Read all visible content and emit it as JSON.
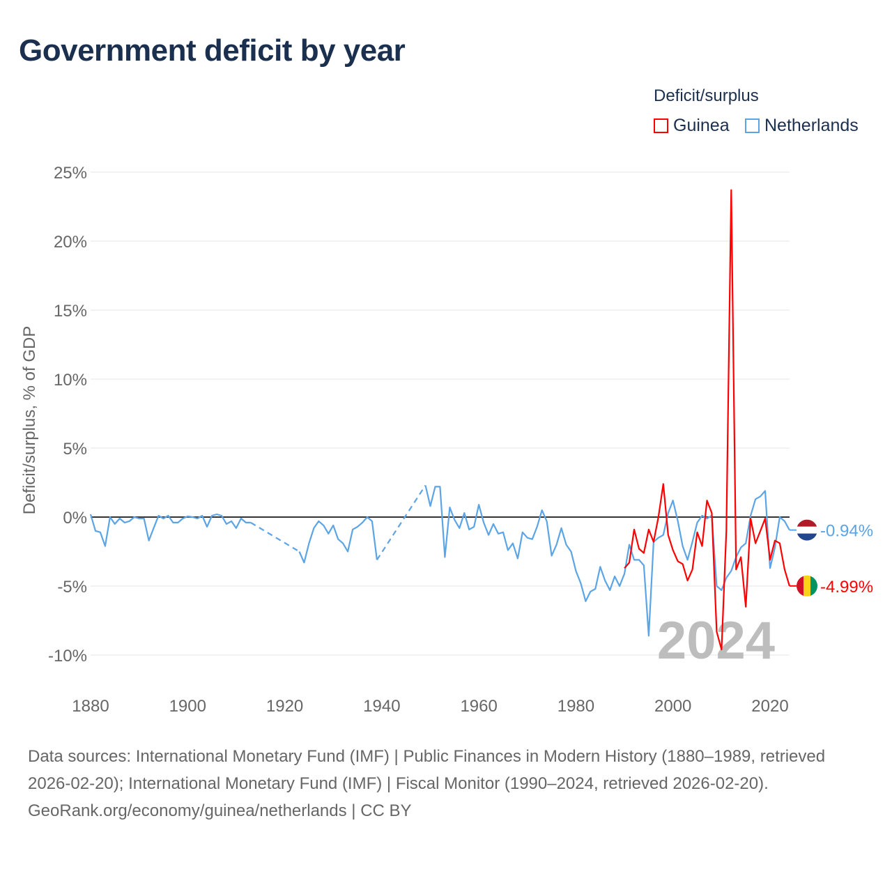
{
  "title": "Government deficit by year",
  "legend": {
    "title": "Deficit/surplus",
    "items": [
      "Guinea",
      "Netherlands"
    ]
  },
  "footer": {
    "sources": "Data sources: International Monetary Fund (IMF) | Public Finances in Modern History (1880–1989, retrieved 2026-02-20); International Monetary Fund (IMF) | Fiscal Monitor (1990–2024, retrieved 2026-02-20).",
    "credit": "GeoRank.org/economy/guinea/netherlands | CC BY"
  },
  "chart_data": {
    "type": "line",
    "title": "Government deficit by year",
    "xlabel": "",
    "ylabel": "Deficit/surplus, % of GDP",
    "xlim": [
      1880,
      2024
    ],
    "ylim": [
      -12,
      26
    ],
    "x_ticks": [
      1880,
      1900,
      1920,
      1940,
      1960,
      1980,
      2000,
      2020
    ],
    "x_tick_labels": [
      "1880",
      "1900",
      "1920",
      "1940",
      "1960",
      "1980",
      "2000",
      "2020"
    ],
    "y_ticks": [
      25,
      20,
      15,
      10,
      5,
      0,
      -5,
      -10
    ],
    "y_tick_labels": [
      "25%",
      "20%",
      "15%",
      "10%",
      "5%",
      "0%",
      "-5%",
      "-10%"
    ],
    "grid": true,
    "legend_position": "top-right",
    "year_watermark": "2024",
    "series": [
      {
        "name": "Guinea",
        "color": "#ff0000",
        "end_label": "-4.99%",
        "flag": [
          "#ce1126",
          "#fcd116",
          "#009460"
        ],
        "start_year": 1990,
        "values": [
          -3.7,
          -3.3,
          -0.9,
          -2.3,
          -2.6,
          -0.9,
          -1.8,
          0,
          2.4,
          -1.3,
          -2.4,
          -3.2,
          -3.4,
          -4.6,
          -3.8,
          -1.1,
          -2.1,
          1.2,
          0.3,
          -8.3,
          -9.6,
          -1.0,
          23.7,
          -3.8,
          -2.9,
          -6.5,
          -0.1,
          -1.9,
          -1.0,
          -0.1,
          -3.1,
          -1.7,
          -1.9,
          -3.8,
          -4.99
        ]
      },
      {
        "name": "Netherlands",
        "color": "#5ba4e6",
        "end_label": "-0.94%",
        "flag": [
          "#ae1c28",
          "#ffffff",
          "#21468b"
        ],
        "start_year": 1880,
        "values": [
          0.2,
          -1.0,
          -1.1,
          -2.1,
          0,
          -0.5,
          -0.1,
          -0.4,
          -0.3,
          0,
          -0.1,
          -0.1,
          -1.7,
          -0.8,
          0.1,
          -0.1,
          0.1,
          -0.4,
          -0.4,
          -0.1,
          0.05,
          0,
          -0.1,
          0.1,
          -0.7,
          0.1,
          0.2,
          0.1,
          -0.5,
          -0.3,
          -0.8,
          -0.1,
          -0.4,
          -0.4,
          null,
          null,
          null,
          null,
          null,
          null,
          null,
          null,
          null,
          -2.5,
          -3.3,
          -1.9,
          -0.8,
          -0.3,
          -0.6,
          -1.2,
          -0.6,
          -1.6,
          -1.9,
          -2.5,
          -0.9,
          -0.7,
          -0.4,
          0,
          -0.3,
          -3.1,
          null,
          null,
          null,
          null,
          null,
          null,
          null,
          null,
          null,
          2.3,
          0.8,
          2.2,
          2.2,
          -2.9,
          0.7,
          -0.2,
          -0.8,
          0.3,
          -0.9,
          -0.7,
          0.9,
          -0.4,
          -1.3,
          -0.5,
          -1.2,
          -1.1,
          -2.4,
          -1.9,
          -3.0,
          -1.1,
          -1.5,
          -1.6,
          -0.7,
          0.5,
          -0.3,
          -2.8,
          -2.0,
          -0.8,
          -2.0,
          -2.5,
          -3.9,
          -4.8,
          -6.1,
          -5.4,
          -5.2,
          -3.6,
          -4.6,
          -5.3,
          -4.3,
          -5.0,
          -4.1,
          -2.0,
          -3.1,
          -3.1,
          -3.5,
          -8.6,
          -1.8,
          -1.5,
          -1.3,
          0.3,
          1.2,
          -0.3,
          -2.1,
          -3.1,
          -1.8,
          -0.4,
          0.1,
          -0.1,
          0.1,
          -5.0,
          -5.3,
          -4.4,
          -3.9,
          -2.9,
          -2.2,
          -1.9,
          0.1,
          1.3,
          1.5,
          1.9,
          -3.7,
          -2.2,
          0,
          -0.3,
          -0.94
        ]
      }
    ]
  }
}
